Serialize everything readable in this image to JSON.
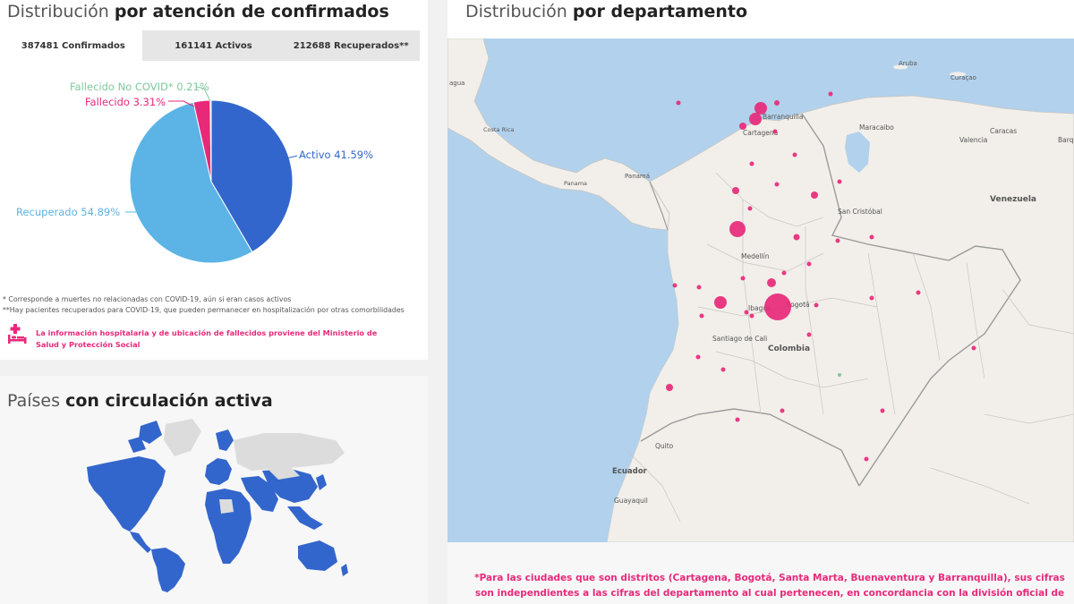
{
  "distribution": {
    "title_light": "Distribución",
    "title_bold": "por atención de confirmados",
    "tabs": [
      {
        "label": "387481 Confirmados",
        "active": true
      },
      {
        "label": "161141 Activos",
        "active": false
      },
      {
        "label": "212688 Recuperados**",
        "active": false
      }
    ],
    "pie": {
      "slices": [
        {
          "name": "Activo",
          "label": "Activo 41.59%",
          "percent": 41.59,
          "color": "#3366cc"
        },
        {
          "name": "Recuperado",
          "label": "Recuperado 54.89%",
          "percent": 54.89,
          "color": "#5bb4e5"
        },
        {
          "name": "Fallecido",
          "label": "Fallecido 3.31%",
          "percent": 3.31,
          "color": "#e8297a"
        },
        {
          "name": "Fallecido No COVID",
          "label": "Fallecido No COVID* 0.21%",
          "percent": 0.21,
          "color": "#7fc89b"
        }
      ]
    },
    "footnote1": "* Corresponde a muertes no relacionadas con COVID-19, aún si eran casos activos",
    "footnote2": "**Hay pacientes recuperados para COVID-19, que pueden permanecer en hospitalización por otras comorbilidades",
    "info_text": "La información hospitalaria y de ubicación de fallecidos proviene del Ministerio de Salud y Protección Social",
    "info_icon": "hospital-bed-icon"
  },
  "countries": {
    "title_light": "Países",
    "title_bold": "con circulación activa",
    "active_color": "#3366cc",
    "inactive_color": "#dcdcdc"
  },
  "department": {
    "title_light": "Distribución",
    "title_bold": "por departamento",
    "map_labels": {
      "aruba": "Aruba",
      "curacao": "Curaçao",
      "barranquilla": "Barranquilla",
      "cartagena": "Cartagena",
      "maracaibo": "Maracaibo",
      "caracas": "Caracas",
      "valencia": "Valencia",
      "barquisimeto": "Barq",
      "costa_rica": "Costa Rica",
      "panama_country": "Panamá",
      "panama_city": "Panamá",
      "venezuela": "Venezuela",
      "san_cristobal": "San Cristóbal",
      "medellin": "Medellín",
      "bogota": "Bogotá",
      "ibague": "Ibagué",
      "cali": "Santiago de Cali",
      "colombia": "Colombia",
      "quito": "Quito",
      "ecuador": "Ecuador",
      "guayaquil": "Guayaquil",
      "aguadulce": "Panama",
      "nicaragua_cut": "agua"
    },
    "dot_color": "#e8297a",
    "note": "*Para las ciudades que son distritos (Cartagena, Bogotá, Santa Marta, Buenaventura y Barranquilla), sus cifras son independientes a las cifras del departamento al cual pertenecen, en concordancia con la división oficial de Colombia."
  }
}
